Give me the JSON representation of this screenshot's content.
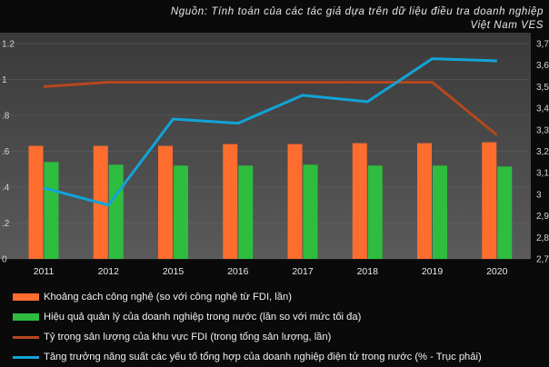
{
  "source_note": {
    "line1": "Nguồn: Tính toán của các tác giả dựa trên dữ liệu điều tra doanh nghiệp",
    "line2": "Việt Nam VES"
  },
  "chart_data": {
    "type": "bar",
    "categories": [
      "2011",
      "2012",
      "2015",
      "2016",
      "2017",
      "2018",
      "2019",
      "2020"
    ],
    "left_axis": {
      "ticks": [
        "0",
        ".2",
        ".4",
        ".6",
        ".8",
        "1",
        "1.2"
      ],
      "ylim": [
        0,
        1.2
      ]
    },
    "right_axis": {
      "ticks": [
        "2,7",
        "2,8",
        "2,9",
        "3",
        "3,1",
        "3,2",
        "3,3",
        "3,4",
        "3,5",
        "3,6",
        "3,7"
      ],
      "ylim": [
        2.7,
        3.7
      ]
    },
    "series": [
      {
        "name": "Khoảng cách công nghệ (so với công nghệ từ FDI, lần)",
        "type": "bar",
        "axis": "left",
        "color": "#ff6d2e",
        "values": [
          0.63,
          0.63,
          0.63,
          0.64,
          0.64,
          0.645,
          0.645,
          0.65
        ]
      },
      {
        "name": "Hiệu quả quản lý của doanh nghiệp trong nước (lần so với mức tối đa)",
        "type": "bar",
        "axis": "left",
        "color": "#2ebd3e",
        "values": [
          0.54,
          0.525,
          0.52,
          0.52,
          0.525,
          0.52,
          0.52,
          0.515
        ]
      },
      {
        "name": "Tỷ trọng sản lượng của khu vực FDI (trong tổng sản lượng, lần)",
        "type": "line",
        "axis": "left",
        "color": "#b5471e",
        "values": [
          0.96,
          0.985,
          0.985,
          0.985,
          0.985,
          0.985,
          0.985,
          0.69
        ]
      },
      {
        "name": "Tăng trưởng năng suất các yếu tố tổng hợp của doanh nghiệp điện tử trong nước (% - Trục phải)",
        "type": "line",
        "axis": "right",
        "color": "#12a3d8",
        "values": [
          3.03,
          2.95,
          3.35,
          3.33,
          3.46,
          3.43,
          3.63,
          3.62
        ]
      }
    ],
    "grid": true,
    "legend_position": "bottom"
  }
}
